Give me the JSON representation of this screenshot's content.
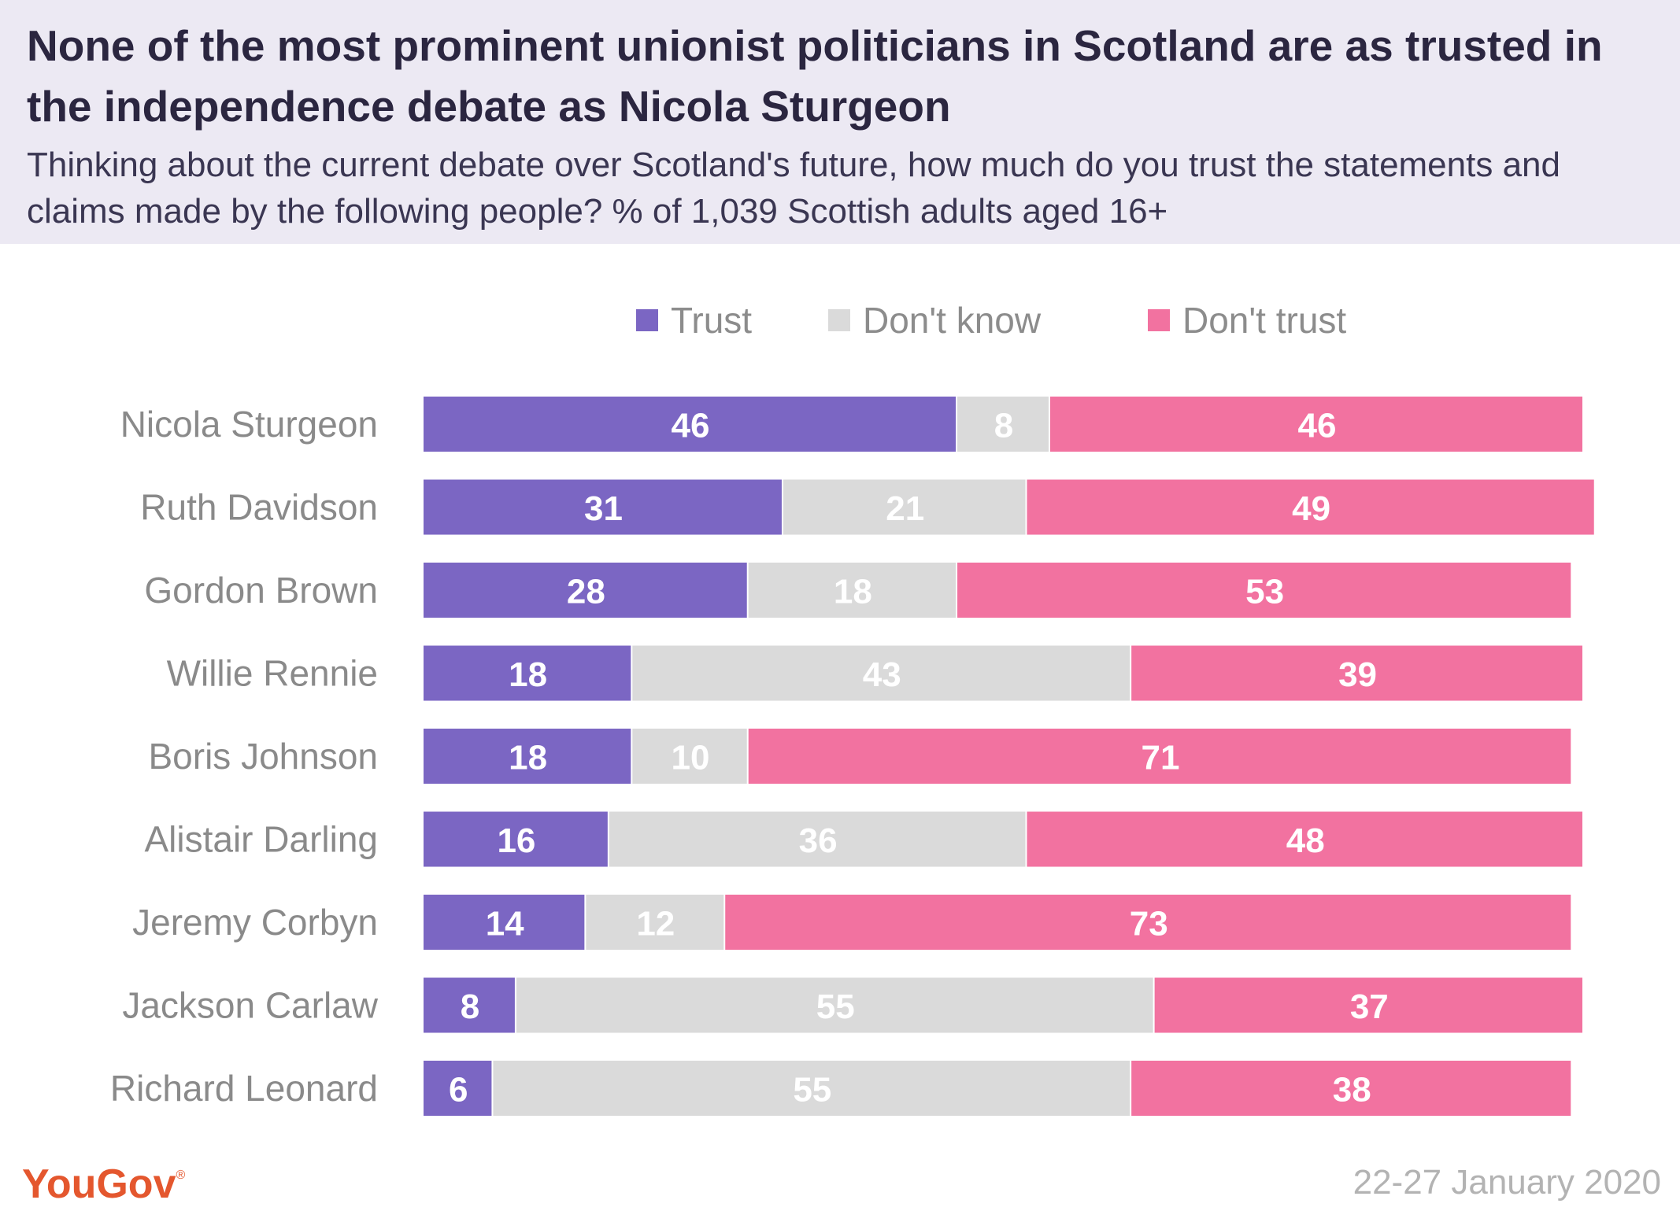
{
  "header": {
    "title": "None of the most prominent unionist politicians in Scotland are as trusted in the independence debate as Nicola Sturgeon",
    "subtitle": "Thinking about the current debate over Scotland's future, how much do you trust the statements and claims made by the following people? % of 1,039 Scottish adults aged 16+"
  },
  "footer": {
    "logo": "YouGov",
    "logo_mark": "®",
    "date": "22-27 January 2020"
  },
  "colors": {
    "trust": "#7b66c3",
    "dont_know": "#dadada",
    "dont_trust": "#f272a0",
    "header_bg": "#ece9f3",
    "brand": "#e4572e"
  },
  "chart_data": {
    "type": "bar",
    "orientation": "horizontal",
    "stacked": true,
    "legend_position": "top",
    "grid": false,
    "xlim": [
      0,
      100
    ],
    "categories": [
      "Nicola Sturgeon",
      "Ruth Davidson",
      "Gordon Brown",
      "Willie Rennie",
      "Boris Johnson",
      "Alistair Darling",
      "Jeremy Corbyn",
      "Jackson Carlaw",
      "Richard Leonard"
    ],
    "series": [
      {
        "name": "Trust",
        "color": "#7b66c3",
        "values": [
          46,
          31,
          28,
          18,
          18,
          16,
          14,
          8,
          6
        ]
      },
      {
        "name": "Don't know",
        "color": "#dadada",
        "values": [
          8,
          21,
          18,
          43,
          10,
          36,
          12,
          55,
          55
        ]
      },
      {
        "name": "Don't trust",
        "color": "#f272a0",
        "values": [
          46,
          49,
          53,
          39,
          71,
          48,
          73,
          37,
          38
        ]
      }
    ]
  }
}
